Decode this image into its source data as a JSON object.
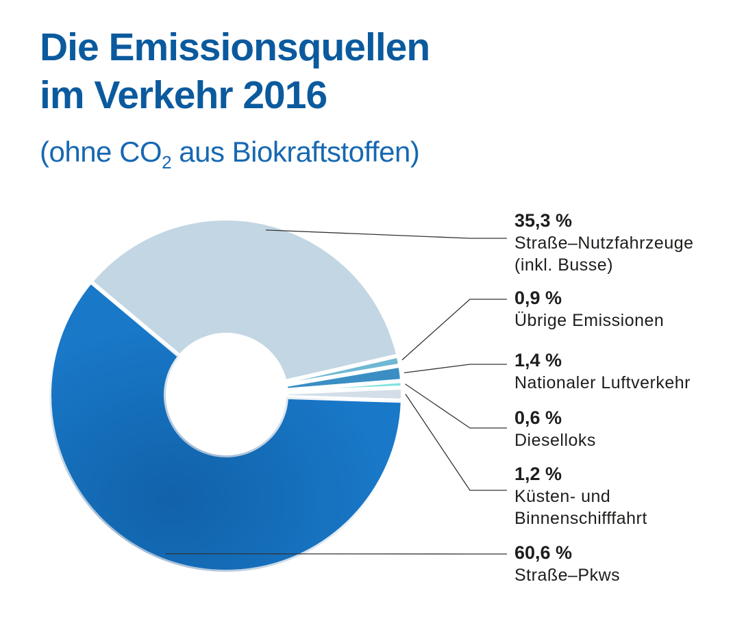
{
  "title_line1": "Die Emissionsquellen",
  "title_line2": "im Verkehr 2016",
  "subtitle": {
    "before": "(ohne CO",
    "sub": "2",
    "after": " aus Biokraftstoffen)"
  },
  "colors": {
    "title": "#0b5a9e",
    "subtitle": "#1668b2",
    "label_text": "#1d1d1b",
    "leader": "#333333"
  },
  "chart_data": {
    "type": "donut",
    "unit": "%",
    "slices": [
      {
        "name": "Straße–Nutzfahrzeuge (inkl. Busse)",
        "value": 35.3,
        "pct_label": "35,3 %",
        "name_lines": [
          "Straße–Nutzfahrzeuge",
          "(inkl. Busse)"
        ],
        "color": "#c3d6e3"
      },
      {
        "name": "Übrige Emissionen",
        "value": 0.9,
        "pct_label": "0,9 %",
        "name_lines": [
          "Übrige Emissionen"
        ],
        "color": "#6fb8d3"
      },
      {
        "name": "Nationaler Luftverkehr",
        "value": 1.4,
        "pct_label": "1,4 %",
        "name_lines": [
          "Nationaler Luftverkehr"
        ],
        "color": "#3a8ec4"
      },
      {
        "name": "Dieselloks",
        "value": 0.6,
        "pct_label": "0,6 %",
        "name_lines": [
          "Dieselloks"
        ],
        "color": "#7ee3dc"
      },
      {
        "name": "Küsten- und Binnenschifffahrt",
        "value": 1.2,
        "pct_label": "1,2 %",
        "name_lines": [
          "Küsten- und",
          "Binnenschifffahrt"
        ],
        "color": "#d3dee8"
      },
      {
        "name": "Straße–Pkws",
        "value": 60.6,
        "pct_label": "60,6 %",
        "name_lines": [
          "Straße–Pkws"
        ],
        "color": "#1978c8"
      }
    ]
  }
}
